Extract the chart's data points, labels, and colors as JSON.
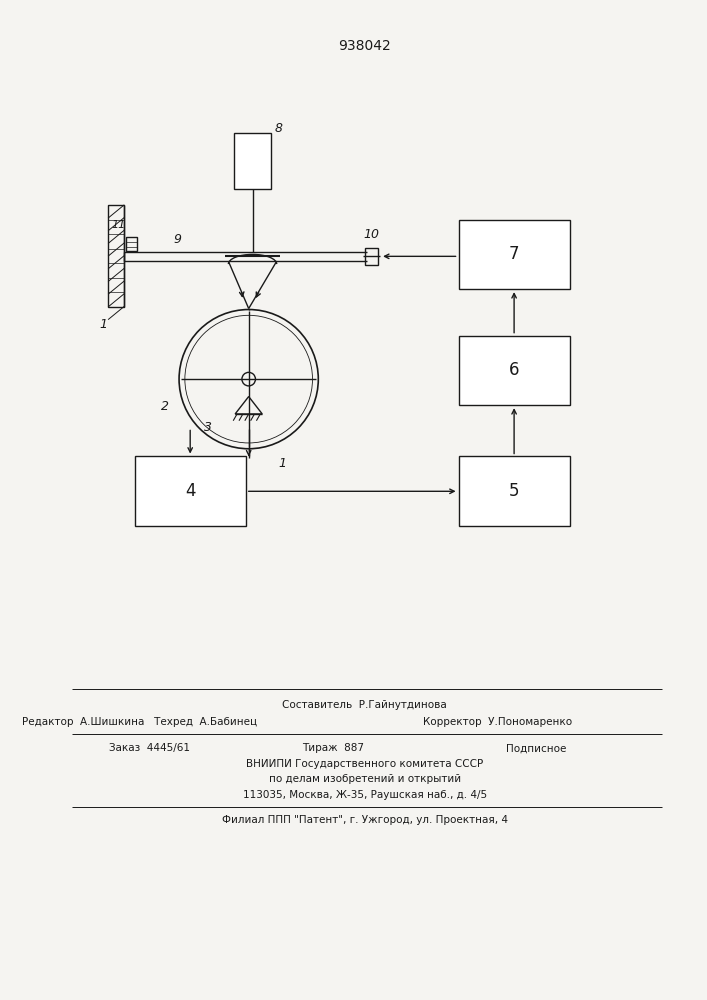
{
  "title": "938042",
  "bg_color": "#f5f4f1",
  "line_color": "#1a1a1a",
  "title_fontsize": 10,
  "footer_lines": [
    "Составитель  Р.Гайнутдинова",
    "Редактор  А.Шишкина   Техред  А.Бабинец",
    "Корректор  У.Пономаренко",
    "Заказ  4445/61",
    "Тираж  887",
    "Подписное",
    "ВНИИПИ Государственного комитета СССР",
    "по делам изобретений и открытий",
    "113035, Москва, Ж-35, Раушская наб., д. 4/5",
    "Филиал ППП \"Патент\", г. Ужгород, ул. Проектная, 4"
  ]
}
